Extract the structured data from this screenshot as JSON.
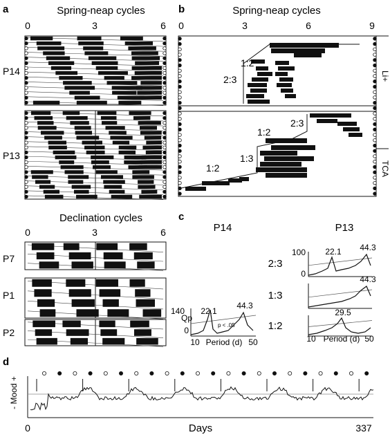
{
  "panels": {
    "a": {
      "letter": "a",
      "title": "Spring-neap cycles",
      "ticks": [
        "0",
        "3",
        "6"
      ],
      "rows": [
        "P14",
        "P13"
      ],
      "declination_title": "Declination cycles",
      "declination_ticks": [
        "0",
        "3",
        "6"
      ],
      "declination_rows": [
        "P7",
        "P1",
        "P2"
      ]
    },
    "b": {
      "letter": "b",
      "title": "Spring-neap cycles",
      "ticks": [
        "0",
        "3",
        "6",
        "9"
      ],
      "upper_ratios": [
        "1:2",
        "2:3"
      ],
      "lower_ratios": [
        "1:2",
        "1:3",
        "1:2",
        "2:3"
      ],
      "side_labels": [
        "Li+",
        "TCA"
      ]
    },
    "c": {
      "letter": "c",
      "left_title": "P14",
      "right_title": "P13",
      "left": {
        "ylabel": "Qp",
        "yticks": [
          "140",
          "0"
        ],
        "xticks": [
          "10",
          "50"
        ],
        "xlabel": "Period (d)",
        "peaks": [
          "22.1",
          "44.3"
        ],
        "significance": "p < .05"
      },
      "right": {
        "rows": [
          "2:3",
          "1:3",
          "1:2"
        ],
        "yticks": [
          "100",
          "0"
        ],
        "xticks": [
          "10",
          "50"
        ],
        "xlabel": "Period (d)",
        "peaks": [
          [
            "22.1",
            "44.3"
          ],
          [
            "44.3"
          ],
          [
            "29.5"
          ]
        ]
      }
    },
    "d": {
      "letter": "d",
      "ylabel": "- Mood +",
      "xlabel": "Days",
      "xstart": "0",
      "xend": "337"
    }
  }
}
